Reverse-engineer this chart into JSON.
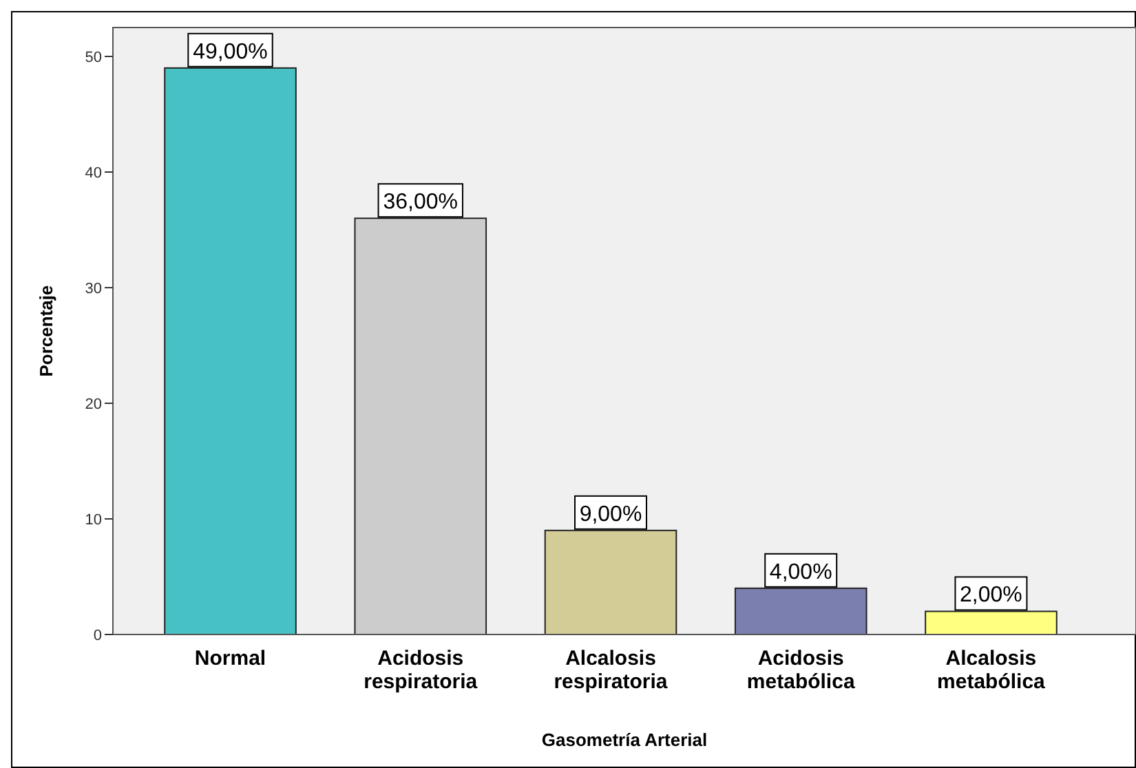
{
  "chart_data": {
    "type": "bar",
    "xlabel": "Gasometría Arterial",
    "ylabel": "Porcentaje",
    "categories": [
      "Normal",
      "Acidosis respiratoria",
      "Alcalosis respiratoria",
      "Acidosis metabólica",
      "Alcalosis metabólica"
    ],
    "values": [
      49,
      36,
      9,
      4,
      2
    ],
    "colors": [
      "#48c1c4",
      "#cccccc",
      "#d4cc96",
      "#7b7fb0",
      "#ffff80"
    ],
    "value_labels": [
      "49,00%",
      "36,00%",
      "9,00%",
      "4,00%",
      "2,00%"
    ],
    "ylim": [
      0,
      52.5
    ],
    "yticks": [
      0,
      10,
      20,
      30,
      40,
      50
    ],
    "grid": false
  }
}
